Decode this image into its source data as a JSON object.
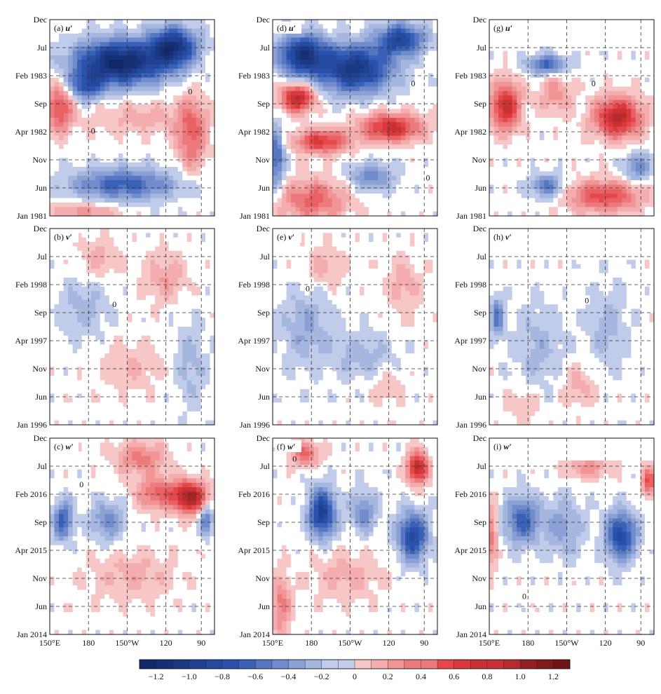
{
  "chart_data": {
    "type": "heatmap",
    "description_rows": [
      {
        "y_ticks": [
          "Jan 1981",
          "Jun",
          "Nov",
          "Apr 1982",
          "Sep",
          "Feb 1983",
          "Jul",
          "Dec"
        ]
      },
      {
        "y_ticks": [
          "Jan 1996",
          "Jun",
          "Nov",
          "Apr 1997",
          "Sep",
          "Feb 1998",
          "Jul",
          "Dec"
        ]
      },
      {
        "y_ticks": [
          "Jan 2014",
          "Jun",
          "Nov",
          "Apr 2015",
          "Sep",
          "Feb 2016",
          "Jul",
          "Dec"
        ]
      }
    ],
    "x_ticks": [
      "150°E",
      "180",
      "150°W",
      "120",
      "90"
    ],
    "panels": [
      {
        "id": "a",
        "label": "(a)",
        "var": "u′",
        "column": 0,
        "row": 0,
        "blank_top": false,
        "blobs": [
          {
            "x": 0.42,
            "y": 0.78,
            "rx": 0.26,
            "ry": 0.11,
            "v": -1.2
          },
          {
            "x": 0.75,
            "y": 0.86,
            "rx": 0.14,
            "ry": 0.1,
            "v": -1.0
          },
          {
            "x": 0.22,
            "y": 0.66,
            "rx": 0.1,
            "ry": 0.07,
            "v": -0.6
          },
          {
            "x": 0.06,
            "y": 0.55,
            "rx": 0.08,
            "ry": 0.12,
            "v": 0.6
          },
          {
            "x": 0.86,
            "y": 0.42,
            "rx": 0.09,
            "ry": 0.18,
            "v": 0.5
          },
          {
            "x": 0.55,
            "y": 0.5,
            "rx": 0.3,
            "ry": 0.08,
            "v": 0.2
          },
          {
            "x": 0.45,
            "y": 0.16,
            "rx": 0.32,
            "ry": 0.08,
            "v": -0.6
          },
          {
            "x": 0.22,
            "y": 0.02,
            "rx": 0.2,
            "ry": 0.05,
            "v": 0.3
          }
        ]
      },
      {
        "id": "b",
        "label": "(b)",
        "var": "v′",
        "column": 0,
        "row": 1,
        "blank_top": false,
        "blobs": [
          {
            "x": 0.2,
            "y": 0.6,
            "rx": 0.15,
            "ry": 0.15,
            "v": -0.2
          },
          {
            "x": 0.7,
            "y": 0.75,
            "rx": 0.12,
            "ry": 0.12,
            "v": 0.25
          },
          {
            "x": 0.5,
            "y": 0.3,
            "rx": 0.2,
            "ry": 0.12,
            "v": 0.15
          },
          {
            "x": 0.85,
            "y": 0.3,
            "rx": 0.1,
            "ry": 0.2,
            "v": -0.2
          },
          {
            "x": 0.3,
            "y": 0.85,
            "rx": 0.12,
            "ry": 0.1,
            "v": 0.2
          }
        ]
      },
      {
        "id": "c",
        "label": "(c)",
        "var": "w′",
        "column": 0,
        "row": 2,
        "blank_top": false,
        "blobs": [
          {
            "x": 0.85,
            "y": 0.7,
            "rx": 0.1,
            "ry": 0.08,
            "v": 1.0
          },
          {
            "x": 0.65,
            "y": 0.72,
            "rx": 0.12,
            "ry": 0.08,
            "v": 0.5
          },
          {
            "x": 0.08,
            "y": 0.58,
            "rx": 0.06,
            "ry": 0.1,
            "v": -0.6
          },
          {
            "x": 0.35,
            "y": 0.58,
            "rx": 0.1,
            "ry": 0.1,
            "v": -0.4
          },
          {
            "x": 0.95,
            "y": 0.58,
            "rx": 0.04,
            "ry": 0.08,
            "v": -0.5
          },
          {
            "x": 0.5,
            "y": 0.3,
            "rx": 0.25,
            "ry": 0.12,
            "v": 0.2
          },
          {
            "x": 0.55,
            "y": 0.9,
            "rx": 0.15,
            "ry": 0.08,
            "v": 0.4
          }
        ]
      },
      {
        "id": "d",
        "label": "(d)",
        "var": "u′",
        "column": 1,
        "row": 0,
        "blank_top": false,
        "blobs": [
          {
            "x": 0.18,
            "y": 0.82,
            "rx": 0.14,
            "ry": 0.1,
            "v": -1.0
          },
          {
            "x": 0.5,
            "y": 0.75,
            "rx": 0.22,
            "ry": 0.12,
            "v": -1.0
          },
          {
            "x": 0.78,
            "y": 0.9,
            "rx": 0.14,
            "ry": 0.08,
            "v": -0.8
          },
          {
            "x": 0.15,
            "y": 0.6,
            "rx": 0.1,
            "ry": 0.07,
            "v": 0.9
          },
          {
            "x": 0.3,
            "y": 0.38,
            "rx": 0.16,
            "ry": 0.06,
            "v": 0.7
          },
          {
            "x": 0.72,
            "y": 0.45,
            "rx": 0.18,
            "ry": 0.07,
            "v": 0.8
          },
          {
            "x": 0.25,
            "y": 0.08,
            "rx": 0.2,
            "ry": 0.1,
            "v": 0.5
          },
          {
            "x": 0.6,
            "y": 0.2,
            "rx": 0.14,
            "ry": 0.07,
            "v": -0.4
          },
          {
            "x": 0.02,
            "y": 0.3,
            "rx": 0.05,
            "ry": 0.15,
            "v": -0.6
          }
        ]
      },
      {
        "id": "e",
        "label": "(e)",
        "var": "v′",
        "column": 1,
        "row": 1,
        "blank_top": false,
        "blobs": [
          {
            "x": 0.2,
            "y": 0.5,
            "rx": 0.15,
            "ry": 0.2,
            "v": -0.25
          },
          {
            "x": 0.55,
            "y": 0.35,
            "rx": 0.2,
            "ry": 0.12,
            "v": -0.2
          },
          {
            "x": 0.3,
            "y": 0.8,
            "rx": 0.12,
            "ry": 0.1,
            "v": 0.2
          },
          {
            "x": 0.8,
            "y": 0.7,
            "rx": 0.1,
            "ry": 0.15,
            "v": 0.2
          },
          {
            "x": 0.7,
            "y": 0.2,
            "rx": 0.1,
            "ry": 0.1,
            "v": 0.15
          }
        ]
      },
      {
        "id": "f",
        "label": "(f)",
        "var": "w′",
        "column": 1,
        "row": 2,
        "blank_top": false,
        "blobs": [
          {
            "x": 0.3,
            "y": 0.62,
            "rx": 0.08,
            "ry": 0.12,
            "v": -0.9
          },
          {
            "x": 0.85,
            "y": 0.5,
            "rx": 0.09,
            "ry": 0.12,
            "v": -0.8
          },
          {
            "x": 0.88,
            "y": 0.85,
            "rx": 0.06,
            "ry": 0.08,
            "v": 0.9
          },
          {
            "x": 0.55,
            "y": 0.62,
            "rx": 0.08,
            "ry": 0.1,
            "v": -0.4
          },
          {
            "x": 0.2,
            "y": 0.92,
            "rx": 0.08,
            "ry": 0.06,
            "v": 0.5
          },
          {
            "x": 0.05,
            "y": 0.15,
            "rx": 0.06,
            "ry": 0.15,
            "v": 0.4
          },
          {
            "x": 0.45,
            "y": 0.3,
            "rx": 0.2,
            "ry": 0.12,
            "v": 0.2
          }
        ]
      },
      {
        "id": "g",
        "label": "(g)",
        "var": "u′",
        "column": 2,
        "row": 0,
        "blank_top": true,
        "blobs": [
          {
            "x": 0.1,
            "y": 0.56,
            "rx": 0.09,
            "ry": 0.12,
            "v": 0.8
          },
          {
            "x": 0.78,
            "y": 0.5,
            "rx": 0.14,
            "ry": 0.1,
            "v": 0.9
          },
          {
            "x": 0.4,
            "y": 0.62,
            "rx": 0.1,
            "ry": 0.1,
            "v": 0.3
          },
          {
            "x": 0.35,
            "y": 0.77,
            "rx": 0.12,
            "ry": 0.05,
            "v": -0.6
          },
          {
            "x": 0.7,
            "y": 0.1,
            "rx": 0.22,
            "ry": 0.08,
            "v": 0.6
          },
          {
            "x": 0.35,
            "y": 0.15,
            "rx": 0.1,
            "ry": 0.06,
            "v": -0.5
          },
          {
            "x": 0.9,
            "y": 0.25,
            "rx": 0.08,
            "ry": 0.08,
            "v": -0.4
          }
        ]
      },
      {
        "id": "h",
        "label": "(h)",
        "var": "v′",
        "column": 2,
        "row": 1,
        "blank_top": true,
        "blobs": [
          {
            "x": 0.05,
            "y": 0.55,
            "rx": 0.04,
            "ry": 0.1,
            "v": -0.5
          },
          {
            "x": 0.3,
            "y": 0.4,
            "rx": 0.15,
            "ry": 0.2,
            "v": -0.2
          },
          {
            "x": 0.72,
            "y": 0.5,
            "rx": 0.12,
            "ry": 0.2,
            "v": -0.2
          },
          {
            "x": 0.55,
            "y": 0.2,
            "rx": 0.1,
            "ry": 0.1,
            "v": 0.2
          },
          {
            "x": 0.2,
            "y": 0.1,
            "rx": 0.1,
            "ry": 0.08,
            "v": 0.15
          }
        ]
      },
      {
        "id": "i",
        "label": "(i)",
        "var": "w′",
        "column": 2,
        "row": 2,
        "blank_top": true,
        "blobs": [
          {
            "x": 0.2,
            "y": 0.58,
            "rx": 0.1,
            "ry": 0.12,
            "v": -0.6
          },
          {
            "x": 0.8,
            "y": 0.5,
            "rx": 0.09,
            "ry": 0.12,
            "v": -0.8
          },
          {
            "x": 0.97,
            "y": 0.78,
            "rx": 0.04,
            "ry": 0.07,
            "v": 0.6
          },
          {
            "x": 0.45,
            "y": 0.55,
            "rx": 0.12,
            "ry": 0.15,
            "v": -0.3
          },
          {
            "x": 0.02,
            "y": 0.5,
            "rx": 0.03,
            "ry": 0.15,
            "v": 0.4
          },
          {
            "x": 0.6,
            "y": 0.85,
            "rx": 0.14,
            "ry": 0.06,
            "v": 0.3
          }
        ]
      }
    ],
    "contour_labels": [
      {
        "panel": "a",
        "x": 0.84,
        "y": 0.62,
        "text": "0"
      },
      {
        "panel": "a",
        "x": 0.25,
        "y": 0.42,
        "text": "0"
      },
      {
        "panel": "d",
        "x": 0.84,
        "y": 0.66,
        "text": "0"
      },
      {
        "panel": "d",
        "x": 0.93,
        "y": 0.18,
        "text": "0"
      },
      {
        "panel": "g",
        "x": 0.62,
        "y": 0.66,
        "text": "0"
      },
      {
        "panel": "b",
        "x": 0.38,
        "y": 0.6,
        "text": "0"
      },
      {
        "panel": "e",
        "x": 0.2,
        "y": 0.68,
        "text": "0"
      },
      {
        "panel": "h",
        "x": 0.58,
        "y": 0.62,
        "text": "0"
      },
      {
        "panel": "c",
        "x": 0.18,
        "y": 0.75,
        "text": "0"
      },
      {
        "panel": "f",
        "x": 0.12,
        "y": 0.88,
        "text": "0"
      },
      {
        "panel": "i",
        "x": 0.2,
        "y": 0.18,
        "text": "0"
      }
    ],
    "colorbar": {
      "labels": [
        "−1.2",
        "−1.0",
        "−0.8",
        "−0.6",
        "−0.4",
        "−0.2",
        "0",
        "0.2",
        "0.4",
        "0.6",
        "0.8",
        "1.0",
        "1.2"
      ],
      "min": -1.3,
      "max": 1.3,
      "step": 0.1
    },
    "colors": {
      "neg_dark": "#0b1f5c",
      "neg_mid": "#2d56b3",
      "neg_light": "#dbe2f3",
      "pos_light": "#fbe0e0",
      "pos_mid": "#e33b3f",
      "pos_dark": "#6e1414",
      "zero": "#ffffff"
    }
  }
}
